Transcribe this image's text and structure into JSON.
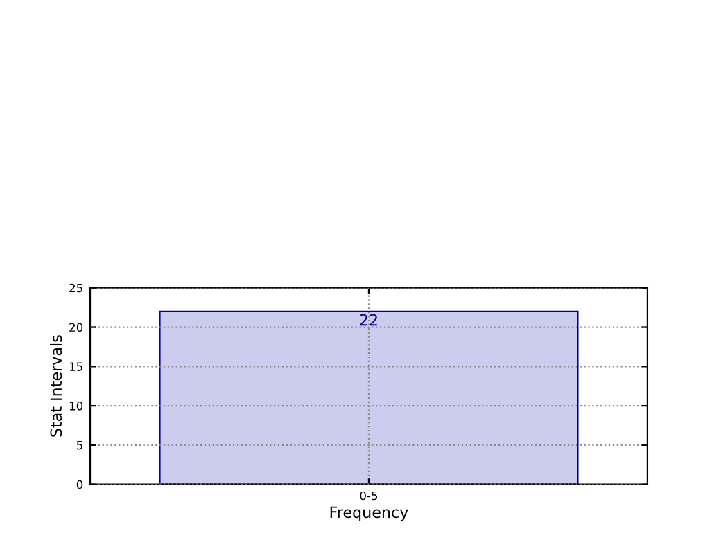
{
  "chart_data": {
    "type": "bar",
    "xlabel": "Frequency",
    "ylabel": "Stat Intervals",
    "categories": [
      "0-5"
    ],
    "values": [
      22
    ],
    "color": "#ccccee",
    "ylim": [
      0,
      25
    ],
    "yticks": [
      0,
      5,
      10,
      15,
      20,
      25
    ],
    "grid": true,
    "data_labels": true
  }
}
